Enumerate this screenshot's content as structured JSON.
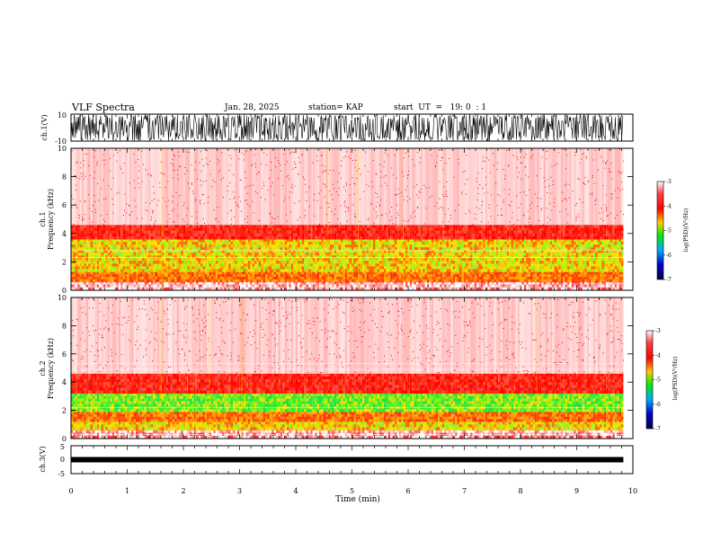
{
  "header": {
    "title": "VLF Spectra",
    "date": "Jan. 28, 2025",
    "station": "station= KAP",
    "start": "start  UT  =   19: 0  : 1"
  },
  "chart_data": [
    {
      "type": "line",
      "name": "ch1-waveform",
      "ylabel": "ch.1(V)",
      "ylim": [
        -10,
        10
      ],
      "yticks": [
        "10",
        "-10"
      ],
      "xlim": [
        0,
        10
      ],
      "note_color": "#000000"
    },
    {
      "type": "heatmap",
      "name": "ch1-spectrogram",
      "ylabel_line1": "ch.1",
      "ylabel_line2": "Frequency  (kHz)",
      "ylim": [
        0,
        10
      ],
      "yticks": [
        "0",
        "2",
        "4",
        "6",
        "8",
        "10"
      ],
      "xlim": [
        0,
        10
      ],
      "data_extent_x": [
        0,
        9.83
      ],
      "bands": [
        {
          "from": 0.0,
          "to": 0.6,
          "level": "red-lines"
        },
        {
          "from": 0.6,
          "to": 1.3,
          "level": "orange"
        },
        {
          "from": 1.3,
          "to": 3.6,
          "level": "yellow-green"
        },
        {
          "from": 3.6,
          "to": 4.6,
          "level": "red"
        },
        {
          "from": 4.6,
          "to": 10.0,
          "level": "sparse-red"
        }
      ],
      "colorbar": {
        "label": "log(PSD)(V²/Hz)",
        "ticks": [
          "-3",
          "-4",
          "-5",
          "-6",
          "-7"
        ],
        "range": [
          -7,
          -3
        ]
      }
    },
    {
      "type": "heatmap",
      "name": "ch2-spectrogram",
      "ylabel_line1": "ch.2",
      "ylabel_line2": "Frequency  (kHz)",
      "ylim": [
        0,
        10
      ],
      "yticks": [
        "0",
        "2",
        "4",
        "6",
        "8",
        "10"
      ],
      "xlim": [
        0,
        10
      ],
      "data_extent_x": [
        0,
        9.83
      ],
      "bands": [
        {
          "from": 0.0,
          "to": 0.6,
          "level": "red-lines"
        },
        {
          "from": 0.6,
          "to": 1.2,
          "level": "yellow-green"
        },
        {
          "from": 1.2,
          "to": 1.9,
          "level": "orange"
        },
        {
          "from": 1.9,
          "to": 3.2,
          "level": "green"
        },
        {
          "from": 3.2,
          "to": 4.6,
          "level": "red"
        },
        {
          "from": 4.6,
          "to": 10.0,
          "level": "sparse-red"
        }
      ],
      "colorbar": {
        "label": "log(PSD)(V²/Hz)",
        "ticks": [
          "-3",
          "-4",
          "-5",
          "-6",
          "-7"
        ],
        "range": [
          -7,
          -3
        ]
      }
    },
    {
      "type": "line",
      "name": "ch3-waveform",
      "ylabel": "ch.3(V)",
      "ylim": [
        -5,
        5
      ],
      "yticks": [
        "5",
        "0",
        "-5"
      ],
      "level": 0,
      "xlim": [
        0,
        10
      ],
      "xlabel": "Time  (min)",
      "xticks": [
        "0",
        "1",
        "2",
        "3",
        "4",
        "5",
        "6",
        "7",
        "8",
        "9",
        "10"
      ]
    }
  ],
  "colors": {
    "waveform": "#000000",
    "sparse": "#ff3030",
    "red": "#ff1a1a",
    "orange": "#ff9900",
    "yellow": "#e6e600",
    "green": "#33ee33",
    "colorbar_stops": [
      "#ff0000",
      "#ffcc00",
      "#00ee00",
      "#00bbff",
      "#0000cc",
      "#000066"
    ]
  }
}
